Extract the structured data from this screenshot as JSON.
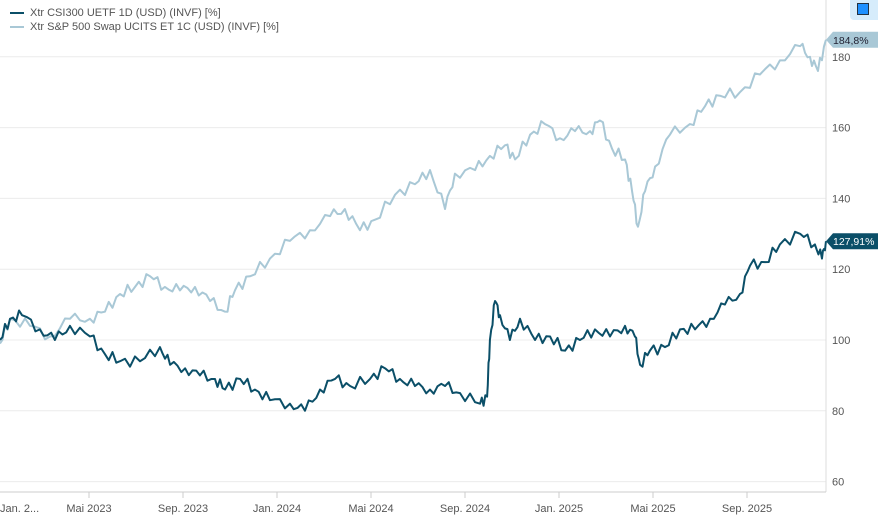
{
  "chart_data": {
    "type": "line",
    "x_unit": "months since Jan 2023",
    "xlim": [
      -0.21,
      35.5
    ],
    "ylim": [
      55,
      193
    ],
    "yticks": [
      60,
      80,
      100,
      120,
      140,
      160,
      180
    ],
    "xticks": [
      {
        "m": 0,
        "label": "Jan. 2..."
      },
      {
        "m": 4,
        "label": "Mai 2023"
      },
      {
        "m": 8,
        "label": "Sep. 2023"
      },
      {
        "m": 12,
        "label": "Jan. 2024"
      },
      {
        "m": 16,
        "label": "Mai 2024"
      },
      {
        "m": 20,
        "label": "Sep. 2024"
      },
      {
        "m": 24,
        "label": "Jan. 2025"
      },
      {
        "m": 28,
        "label": "Mai 2025"
      },
      {
        "m": 32,
        "label": "Sep. 2025"
      }
    ],
    "grid": true,
    "legend_position": "top-left",
    "series": [
      {
        "name": "Xtr CSI300 UETF 1D (USD) (INVF) [%]",
        "color": "#0b4f68",
        "last_label": "127,91%",
        "points": [
          [
            0.21,
            100
          ],
          [
            0.64,
            106
          ],
          [
            1.15,
            107
          ],
          [
            1.91,
            103
          ],
          [
            2.55,
            100
          ],
          [
            3.19,
            104
          ],
          [
            4.04,
            101
          ],
          [
            4.68,
            96
          ],
          [
            5.32,
            94
          ],
          [
            6.17,
            94
          ],
          [
            7.02,
            98
          ],
          [
            7.45,
            93
          ],
          [
            8.09,
            92
          ],
          [
            8.72,
            90
          ],
          [
            9.36,
            89
          ],
          [
            9.79,
            86
          ],
          [
            10.43,
            89
          ],
          [
            11.06,
            86
          ],
          [
            11.7,
            83
          ],
          [
            12.55,
            82
          ],
          [
            13.19,
            80
          ],
          [
            13.83,
            86
          ],
          [
            14.47,
            89
          ],
          [
            15.11,
            87
          ],
          [
            15.96,
            89
          ],
          [
            16.6,
            92
          ],
          [
            17.23,
            89
          ],
          [
            17.87,
            87
          ],
          [
            18.51,
            86
          ],
          [
            19.15,
            87
          ],
          [
            19.79,
            85
          ],
          [
            20.64,
            82
          ],
          [
            20.94,
            84
          ],
          [
            21.06,
            100
          ],
          [
            21.28,
            111
          ],
          [
            21.49,
            107
          ],
          [
            21.91,
            100
          ],
          [
            22.34,
            106
          ],
          [
            22.98,
            100
          ],
          [
            23.62,
            101
          ],
          [
            24.26,
            97
          ],
          [
            24.89,
            100
          ],
          [
            25.53,
            103
          ],
          [
            26.17,
            101
          ],
          [
            26.81,
            104
          ],
          [
            27.23,
            101
          ],
          [
            27.45,
            93
          ],
          [
            27.87,
            97
          ],
          [
            28.51,
            98
          ],
          [
            29.15,
            103
          ],
          [
            29.79,
            103
          ],
          [
            30.43,
            106
          ],
          [
            31.06,
            110
          ],
          [
            31.7,
            113
          ],
          [
            32.13,
            121
          ],
          [
            32.77,
            122
          ],
          [
            33.4,
            127
          ],
          [
            34.26,
            130
          ],
          [
            34.89,
            127
          ],
          [
            35.19,
            123
          ],
          [
            35.36,
            127.91
          ]
        ]
      },
      {
        "name": "Xtr S&P 500 Swap UCITS ET 1C (USD) (INVF) [%]",
        "color": "#a9c8d6",
        "last_label": "184,8%",
        "points": [
          [
            0.21,
            99
          ],
          [
            0.64,
            106
          ],
          [
            1.49,
            104
          ],
          [
            2.34,
            101
          ],
          [
            3.19,
            106
          ],
          [
            4.04,
            106
          ],
          [
            4.68,
            108
          ],
          [
            5.32,
            113
          ],
          [
            5.96,
            115
          ],
          [
            6.6,
            118
          ],
          [
            7.23,
            115
          ],
          [
            7.87,
            114
          ],
          [
            8.51,
            115
          ],
          [
            9.15,
            111
          ],
          [
            9.79,
            108
          ],
          [
            10.21,
            114
          ],
          [
            10.85,
            118
          ],
          [
            11.7,
            123
          ],
          [
            12.55,
            128
          ],
          [
            13.4,
            131
          ],
          [
            14.26,
            135
          ],
          [
            14.89,
            137
          ],
          [
            15.53,
            131
          ],
          [
            16.17,
            134
          ],
          [
            17.02,
            141
          ],
          [
            17.87,
            144
          ],
          [
            18.51,
            148
          ],
          [
            19.15,
            137
          ],
          [
            19.57,
            147
          ],
          [
            20.43,
            148
          ],
          [
            21.06,
            152
          ],
          [
            21.7,
            155
          ],
          [
            22.13,
            151
          ],
          [
            22.77,
            158
          ],
          [
            23.4,
            161
          ],
          [
            24.04,
            157
          ],
          [
            24.68,
            159
          ],
          [
            25.32,
            159
          ],
          [
            25.74,
            162
          ],
          [
            26.26,
            154
          ],
          [
            26.81,
            151
          ],
          [
            27.11,
            142
          ],
          [
            27.36,
            132
          ],
          [
            27.66,
            142
          ],
          [
            28.09,
            149
          ],
          [
            28.72,
            158
          ],
          [
            29.57,
            161
          ],
          [
            30.21,
            166
          ],
          [
            30.85,
            169
          ],
          [
            31.7,
            170
          ],
          [
            32.55,
            175
          ],
          [
            33.4,
            179
          ],
          [
            34.26,
            183
          ],
          [
            34.68,
            180
          ],
          [
            35.02,
            176
          ],
          [
            35.36,
            184.8
          ]
        ]
      }
    ]
  }
}
